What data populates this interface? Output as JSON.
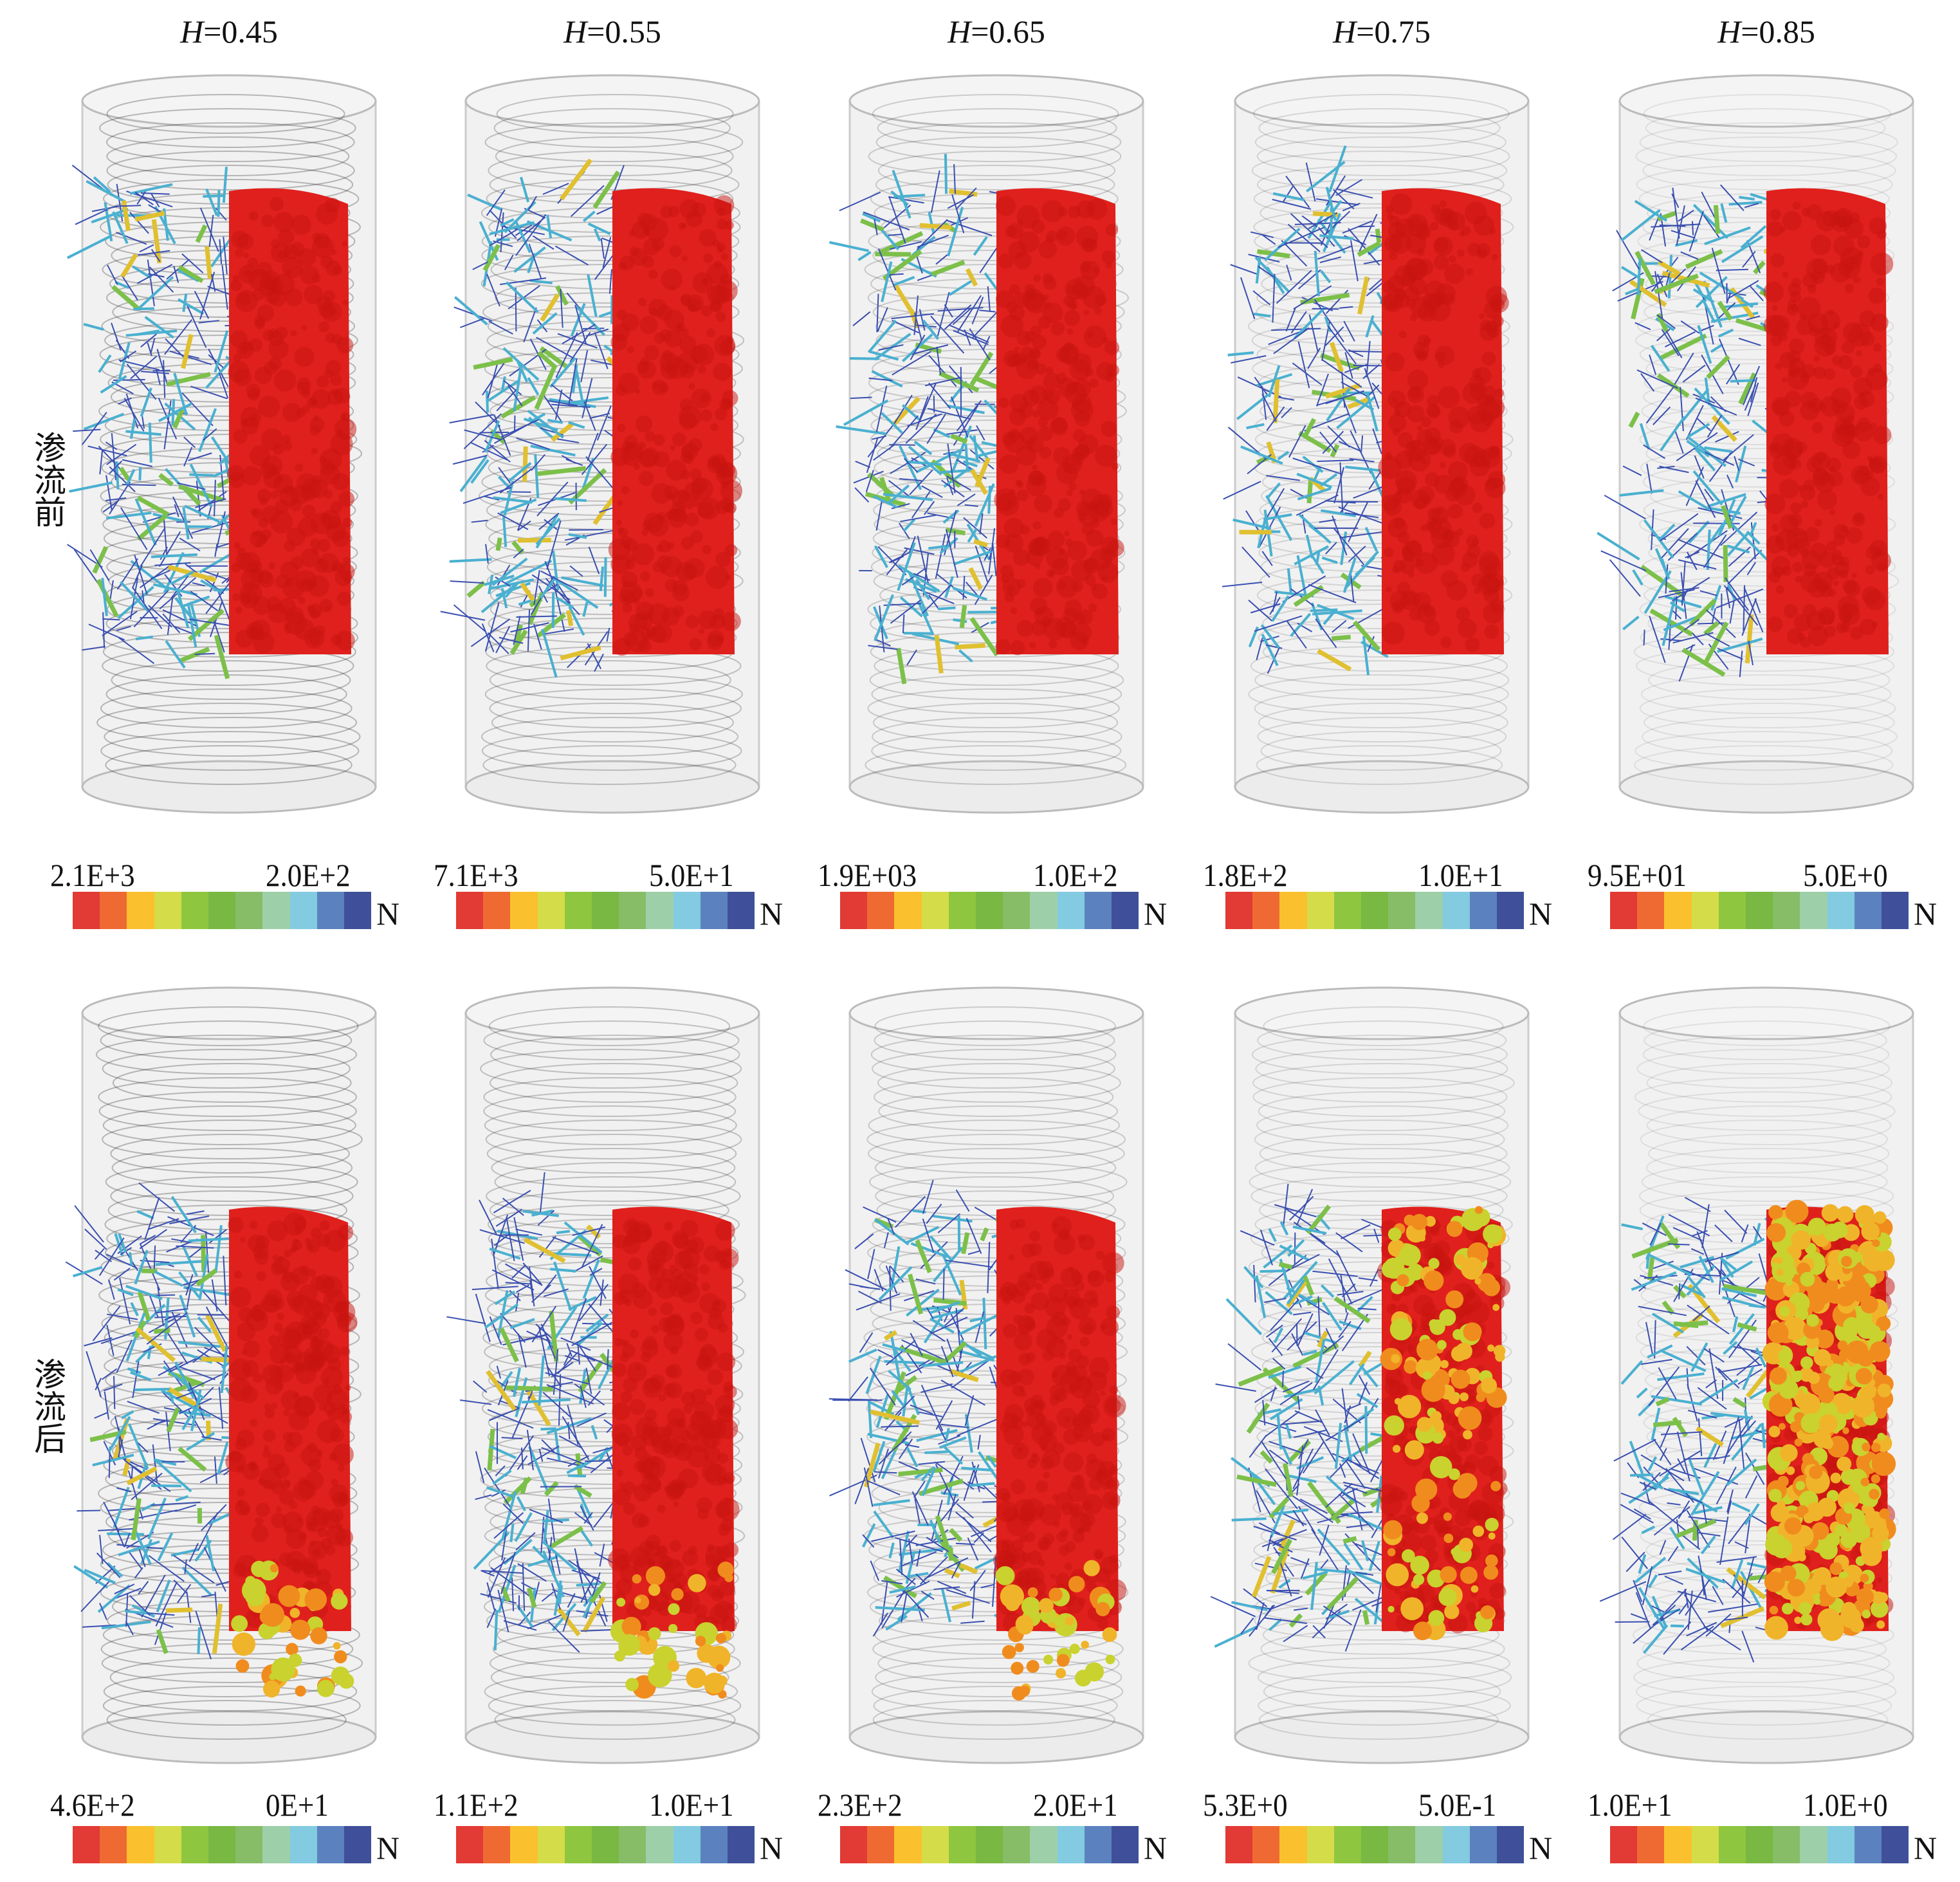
{
  "row_labels": [
    "渗流前",
    "渗流后"
  ],
  "columns": [
    {
      "var": "H",
      "value": "=0.45"
    },
    {
      "var": "H",
      "value": "=0.55"
    },
    {
      "var": "H",
      "value": "=0.65"
    },
    {
      "var": "H",
      "value": "=0.75"
    },
    {
      "var": "H",
      "value": "=0.85"
    }
  ],
  "colorbar_colors": [
    "#e23a35",
    "#ee6a32",
    "#fbc02d",
    "#d4dc49",
    "#8fc640",
    "#78b843",
    "#86bd66",
    "#9dcfa8",
    "#82cbe0",
    "#5b82bf",
    "#3f4f9a"
  ],
  "unit": "N",
  "colorbars": [
    [
      {
        "max": "2.1E+3",
        "min": "2.0E+2"
      },
      {
        "max": "7.1E+3",
        "min": "5.0E+1"
      },
      {
        "max": "1.9E+03",
        "min": "1.0E+2"
      },
      {
        "max": "1.8E+2",
        "min": "1.0E+1"
      },
      {
        "max": "9.5E+01",
        "min": "5.0E+0"
      }
    ],
    [
      {
        "max": "4.6E+2",
        "min": "0E+1"
      },
      {
        "max": "1.1E+2",
        "min": "1.0E+1"
      },
      {
        "max": "2.3E+2",
        "min": "2.0E+1"
      },
      {
        "max": "5.3E+0",
        "min": "5.0E-1"
      },
      {
        "max": "1.0E+1",
        "min": "1.0E+0"
      }
    ]
  ],
  "particle_colors": {
    "intact": "#e0201c",
    "eroded": [
      "#f08c1e",
      "#f0b42a",
      "#c9d22e"
    ]
  }
}
